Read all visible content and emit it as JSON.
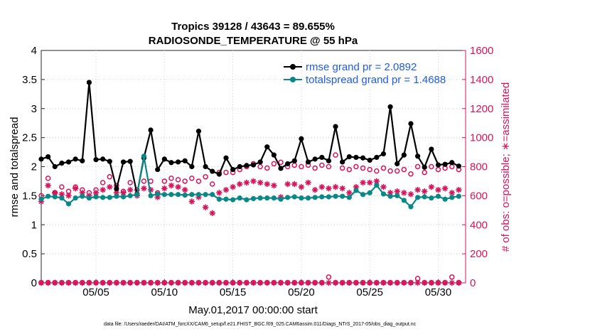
{
  "chart_data": {
    "type": "line",
    "title_line1": "Tropics 39128 / 43643 = 89.655%",
    "title_line2": "RADIOSONDE_TEMPERATURE @ 55 hPa",
    "xlabel": "May.01,2017 00:00:00 start",
    "ylabel_left": "rmse and totalspread",
    "ylabel_right": "# of obs: o=possible; ∗=assimilated",
    "footnote": "data file: /Users/raeder/DAI/ATM_forcXX/CAM6_setup/f.e21.FHIST_BGC.f09_025.CAM6assim.011/Diags_NTrS_2017-05/obs_diag_output.nc",
    "x_range": [
      1.0,
      32.0
    ],
    "ylim_left": [
      0,
      4
    ],
    "ylim_right": [
      0,
      1600
    ],
    "y_ticks_left": [
      "0",
      "0.5",
      "1",
      "1.5",
      "2",
      "2.5",
      "3",
      "3.5",
      "4"
    ],
    "y_ticks_right": [
      "0",
      "200",
      "400",
      "600",
      "800",
      "1000",
      "1200",
      "1400",
      "1600"
    ],
    "x_ticks": [
      {
        "value": 5,
        "label": "05/05"
      },
      {
        "value": 10,
        "label": "05/10"
      },
      {
        "value": 15,
        "label": "05/15"
      },
      {
        "value": 20,
        "label": "05/20"
      },
      {
        "value": 25,
        "label": "05/25"
      },
      {
        "value": 30,
        "label": "05/30"
      }
    ],
    "x": [
      1.0,
      1.5,
      2.0,
      2.5,
      3.0,
      3.5,
      4.0,
      4.5,
      5.0,
      5.5,
      6.0,
      6.5,
      7.0,
      7.5,
      8.0,
      8.5,
      9.0,
      9.5,
      10.0,
      10.5,
      11.0,
      11.5,
      12.0,
      12.5,
      13.0,
      13.5,
      14.0,
      14.5,
      15.0,
      15.5,
      16.0,
      16.5,
      17.0,
      17.5,
      18.0,
      18.5,
      19.0,
      19.5,
      20.0,
      20.5,
      21.0,
      21.5,
      22.0,
      22.5,
      23.0,
      23.5,
      24.0,
      24.5,
      25.0,
      25.5,
      26.0,
      26.5,
      27.0,
      27.5,
      28.0,
      28.5,
      29.0,
      29.5,
      30.0,
      30.5,
      31.0,
      31.5
    ],
    "series": [
      {
        "name": "rmse grand pr = 2.0892",
        "color": "#000000",
        "axis": "left",
        "values": [
          2.13,
          2.17,
          2.0,
          2.06,
          2.08,
          2.13,
          2.1,
          3.45,
          2.12,
          2.13,
          2.09,
          1.62,
          2.08,
          2.09,
          1.53,
          2.15,
          2.63,
          1.95,
          2.13,
          2.07,
          2.08,
          2.1,
          2.0,
          2.61,
          2.0,
          1.92,
          1.87,
          2.15,
          1.95,
          2.0,
          2.02,
          2.03,
          2.08,
          2.34,
          2.2,
          1.97,
          2.05,
          2.1,
          2.48,
          2.08,
          2.13,
          2.16,
          2.1,
          2.69,
          2.08,
          2.17,
          2.16,
          2.15,
          2.11,
          2.16,
          2.22,
          3.03,
          2.05,
          2.2,
          2.74,
          2.18,
          1.99,
          2.3,
          2.03,
          2.04,
          2.07,
          2.01
        ]
      },
      {
        "name": "totalspread grand pr = 1.4688",
        "color": "#0a8888",
        "axis": "left",
        "values": [
          1.44,
          1.49,
          1.48,
          1.46,
          1.36,
          1.46,
          1.49,
          1.46,
          1.48,
          1.47,
          1.47,
          1.49,
          1.48,
          1.5,
          1.52,
          2.18,
          1.5,
          1.53,
          1.52,
          1.52,
          1.52,
          1.51,
          1.52,
          1.52,
          1.52,
          1.52,
          1.44,
          1.44,
          1.43,
          1.46,
          1.43,
          1.45,
          1.46,
          1.46,
          1.46,
          1.44,
          1.47,
          1.48,
          1.46,
          1.46,
          1.47,
          1.48,
          1.48,
          1.49,
          1.49,
          1.47,
          1.59,
          1.52,
          1.55,
          1.68,
          1.53,
          1.49,
          1.5,
          1.42,
          1.31,
          1.47,
          1.48,
          1.46,
          1.49,
          1.44,
          1.47,
          1.49
        ]
      },
      {
        "name": "possible",
        "color": "#d6145c",
        "axis": "right",
        "marker": "circle",
        "values": [
          600,
          720,
          620,
          660,
          630,
          660,
          640,
          620,
          640,
          690,
          730,
          670,
          630,
          690,
          640,
          700,
          700,
          620,
          700,
          720,
          710,
          700,
          720,
          700,
          730,
          680,
          760,
          760,
          760,
          780,
          800,
          820,
          800,
          790,
          820,
          830,
          800,
          810,
          800,
          810,
          790,
          810,
          800,
          880,
          790,
          780,
          800,
          790,
          780,
          770,
          790,
          770,
          770,
          780,
          750,
          800,
          760,
          800,
          780,
          790,
          800,
          780
        ]
      },
      {
        "name": "assimilated",
        "color": "#d6145c",
        "axis": "right",
        "marker": "asterisk",
        "values": [
          560,
          670,
          620,
          610,
          600,
          650,
          620,
          600,
          620,
          640,
          660,
          620,
          620,
          640,
          600,
          650,
          640,
          590,
          650,
          670,
          660,
          640,
          560,
          590,
          520,
          480,
          620,
          640,
          660,
          680,
          690,
          700,
          690,
          680,
          670,
          590,
          680,
          680,
          660,
          690,
          640,
          660,
          650,
          660,
          650,
          620,
          660,
          690,
          690,
          700,
          660,
          620,
          630,
          620,
          610,
          640,
          630,
          660,
          640,
          650,
          620,
          640
        ]
      },
      {
        "name": "possible-bottom",
        "color": "#d6145c",
        "axis": "right",
        "marker": "circle",
        "values": [
          2,
          2,
          2,
          2,
          2,
          2,
          2,
          2,
          2,
          2,
          2,
          2,
          2,
          2,
          2,
          2,
          2,
          2,
          2,
          2,
          2,
          2,
          2,
          2,
          2,
          2,
          2,
          2,
          2,
          2,
          2,
          2,
          2,
          2,
          2,
          2,
          2,
          2,
          2,
          2,
          2,
          2,
          40,
          2,
          2,
          2,
          2,
          2,
          2,
          2,
          2,
          2,
          2,
          2,
          2,
          30,
          2,
          2,
          2,
          2,
          40,
          2
        ]
      },
      {
        "name": "assimilated-bottom",
        "color": "#d6145c",
        "axis": "right",
        "marker": "asterisk",
        "values": [
          0,
          0,
          0,
          0,
          0,
          0,
          0,
          0,
          0,
          0,
          0,
          0,
          0,
          0,
          0,
          0,
          0,
          0,
          0,
          0,
          0,
          0,
          0,
          0,
          0,
          0,
          0,
          0,
          0,
          0,
          0,
          0,
          0,
          0,
          0,
          0,
          0,
          0,
          0,
          0,
          0,
          0,
          0,
          0,
          0,
          0,
          0,
          0,
          0,
          0,
          0,
          0,
          0,
          0,
          0,
          0,
          0,
          0,
          0,
          0,
          0,
          0
        ]
      }
    ],
    "legend": [
      {
        "label": "rmse grand pr = 2.0892",
        "color": "#000000"
      },
      {
        "label": "totalspread grand pr = 1.4688",
        "color": "#0a8888"
      }
    ],
    "legend_text_color": "#1f5ce8",
    "right_axis_color": "#d6145c",
    "legend_placement": "top-right"
  }
}
